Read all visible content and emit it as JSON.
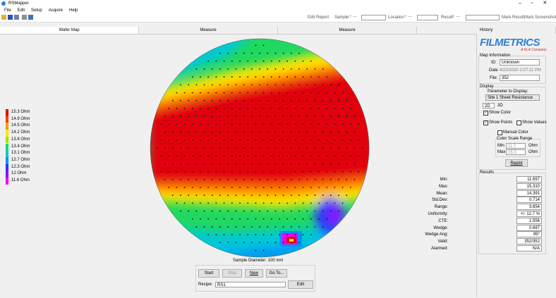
{
  "window": {
    "title": "RSMapper"
  },
  "menu": [
    "File",
    "Edit",
    "Setup",
    "Acquire",
    "Help"
  ],
  "toolbar": {
    "edit_report": "Edit Report",
    "sample": "Sample",
    "location": "Location",
    "result": "Result",
    "mark_result": "Mark Result",
    "mark_screenshot": "Mark Screenshot"
  },
  "tabs": [
    "Wafer Map",
    "Measure",
    "Measure",
    "History"
  ],
  "wafer_map": {
    "legend": [
      {
        "label": "15.3 Ohm",
        "color": "#e3000c"
      },
      {
        "label": "14.9 Ohm",
        "color": "#ff3c00"
      },
      {
        "label": "14.5 Ohm",
        "color": "#ff9a00"
      },
      {
        "label": "14.2 Ohm",
        "color": "#ffe800"
      },
      {
        "label": "13.8 Ohm",
        "color": "#9ce800"
      },
      {
        "label": "13.4 Ohm",
        "color": "#20d860"
      },
      {
        "label": "13.1 Ohm",
        "color": "#00c8d8"
      },
      {
        "label": "12.7 Ohm",
        "color": "#0090ff"
      },
      {
        "label": "12.3 Ohm",
        "color": "#2038ff"
      },
      {
        "label": "12 Ohm",
        "color": "#8a10ff"
      },
      {
        "label": "11.6 Ohm",
        "color": "#f000f0"
      }
    ],
    "caption": "Sample Diameter: 100 mm"
  },
  "controls": {
    "start": "Start",
    "stop": "Stop",
    "new": "New",
    "go_to": "Go To...",
    "recipe_label": "Recipe:",
    "recipe": "RS1",
    "edit": "Edit"
  },
  "side_panel": {
    "logo": "FILMETRICS",
    "tagline": "A KLA Company",
    "map_information": {
      "title": "Map Information",
      "id_label": "ID:",
      "id": "Unknown",
      "date_label": "Date",
      "date": "4/22/2020 2:07:21 PM",
      "file_label": "File:",
      "file": "352"
    },
    "display": {
      "title": "Display",
      "parameter_label": "Parameter to Display:",
      "parameter": "Site 1 Sheet Resistance",
      "view_2d": "2D",
      "view_3d": "3D",
      "show_color": "Show Color",
      "show_points": "Show Points",
      "show_values": "Show Values",
      "manual_color": "Manual Color",
      "color_scale_range": "Color Scale Range",
      "min_label": "Min",
      "min": "11.7",
      "max_label": "Max",
      "max": "15.3",
      "unit": "Ohm",
      "replot": "Replot"
    },
    "results": {
      "title": "Results",
      "rows": [
        [
          "Min:",
          "11.657"
        ],
        [
          "Max:",
          "15.310"
        ],
        [
          "Mean:",
          "14.391"
        ],
        [
          "Std.Dev:",
          "0.714"
        ],
        [
          "Range:",
          "3.654"
        ],
        [
          "Uniformity:",
          "+/- 12.7 %"
        ],
        [
          "CTE:",
          "1.556"
        ],
        [
          "Wedge:",
          "0.687"
        ],
        [
          "Wedge Ang:",
          "99°"
        ],
        [
          "Valid:",
          "352/352"
        ],
        [
          "Alarmed:",
          "N/A"
        ]
      ]
    }
  }
}
